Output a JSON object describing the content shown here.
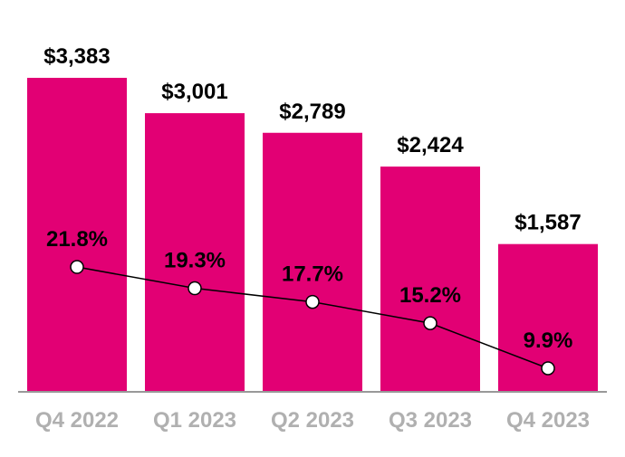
{
  "chart_data": {
    "type": "bar",
    "title": "",
    "xlabel": "",
    "ylabel": "",
    "categories": [
      "Q4 2022",
      "Q1 2023",
      "Q2 2023",
      "Q3 2023",
      "Q4 2023"
    ],
    "series": [
      {
        "type": "bar",
        "values": [
          3383,
          3001,
          2789,
          2424,
          1587
        ],
        "labels": [
          "$3,383",
          "$3,001",
          "$2,789",
          "$2,424",
          "$1,587"
        ],
        "color": "#E20074"
      },
      {
        "type": "line",
        "values": [
          21.8,
          19.3,
          17.7,
          15.2,
          9.9
        ],
        "labels": [
          "21.8%",
          "19.3%",
          "17.7%",
          "15.2%",
          "9.9%"
        ],
        "color": "#000000"
      }
    ],
    "grid": false,
    "legend": "none",
    "colors": {
      "bar": "#E20074",
      "axis": "#999999",
      "tick_label": "#B0B0B0",
      "marker_fill": "#FFFFFF"
    }
  }
}
